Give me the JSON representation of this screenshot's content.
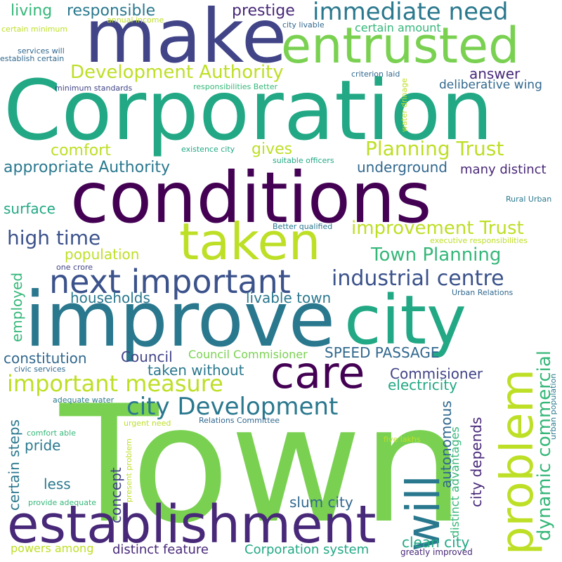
{
  "words": [
    {
      "text": "Town",
      "color": "#7ad151",
      "rot": false
    },
    {
      "text": "Corporation",
      "color": "#22a884",
      "rot": false
    },
    {
      "text": "improve",
      "color": "#2a788e",
      "rot": false
    },
    {
      "text": "conditions",
      "color": "#440154",
      "rot": false
    },
    {
      "text": "make",
      "color": "#414487",
      "rot": false
    },
    {
      "text": "city",
      "color": "#22a884",
      "rot": false
    },
    {
      "text": "establishment",
      "color": "#482878",
      "rot": false
    },
    {
      "text": "taken",
      "color": "#bddf26",
      "rot": false
    },
    {
      "text": "entrusted",
      "color": "#7ad151",
      "rot": false
    },
    {
      "text": "will",
      "color": "#2a788e",
      "rot": true
    },
    {
      "text": "problem",
      "color": "#bddf26",
      "rot": true
    },
    {
      "text": "care",
      "color": "#440154",
      "rot": false
    },
    {
      "text": "next important",
      "color": "#3b528b",
      "rot": false
    },
    {
      "text": "immediate need",
      "color": "#2a788e",
      "rot": false
    },
    {
      "text": "city Development",
      "color": "#2a788e",
      "rot": false
    },
    {
      "text": "important measure",
      "color": "#bddf26",
      "rot": false
    },
    {
      "text": "industrial centre",
      "color": "#3b528b",
      "rot": false
    },
    {
      "text": "Development Authority",
      "color": "#bddf26",
      "rot": false
    },
    {
      "text": "Planning Trust",
      "color": "#bddf26",
      "rot": false
    },
    {
      "text": "improvement Trust",
      "color": "#bddf26",
      "rot": false
    },
    {
      "text": "Town Planning",
      "color": "#35b779",
      "rot": false
    },
    {
      "text": "dynamic commercial",
      "color": "#35b779",
      "rot": true
    },
    {
      "text": "high time",
      "color": "#3b528b",
      "rot": false
    },
    {
      "text": "prestige",
      "color": "#482878",
      "rot": false
    },
    {
      "text": "responsible",
      "color": "#2a788e",
      "rot": false
    },
    {
      "text": "living",
      "color": "#35b779",
      "rot": false
    },
    {
      "text": "answer",
      "color": "#482878",
      "rot": false
    },
    {
      "text": "deliberative wing",
      "color": "#31688e",
      "rot": false
    },
    {
      "text": "appropriate Authority",
      "color": "#2a788e",
      "rot": false
    },
    {
      "text": "gives",
      "color": "#bddf26",
      "rot": false
    },
    {
      "text": "comfort",
      "color": "#bddf26",
      "rot": false
    },
    {
      "text": "underground",
      "color": "#31688e",
      "rot": false
    },
    {
      "text": "many distinct",
      "color": "#482878",
      "rot": false
    },
    {
      "text": "surface",
      "color": "#22a884",
      "rot": false
    },
    {
      "text": "population",
      "color": "#bddf26",
      "rot": false
    },
    {
      "text": "households",
      "color": "#2a788e",
      "rot": false
    },
    {
      "text": "livable town",
      "color": "#2a788e",
      "rot": false
    },
    {
      "text": "employed",
      "color": "#35b779",
      "rot": true
    },
    {
      "text": "constitution",
      "color": "#31688e",
      "rot": false
    },
    {
      "text": "Council",
      "color": "#414487",
      "rot": false
    },
    {
      "text": "SPEED PASSAGE",
      "color": "#31688e",
      "rot": false
    },
    {
      "text": "Council Commisioner",
      "color": "#7ad151",
      "rot": false
    },
    {
      "text": "taken without",
      "color": "#2a788e",
      "rot": false
    },
    {
      "text": "Commisioner",
      "color": "#414487",
      "rot": false
    },
    {
      "text": "electricity",
      "color": "#22a884",
      "rot": false
    },
    {
      "text": "certain steps",
      "color": "#2a788e",
      "rot": true
    },
    {
      "text": "pride",
      "color": "#2a788e",
      "rot": false
    },
    {
      "text": "less",
      "color": "#2a788e",
      "rot": false
    },
    {
      "text": "concept",
      "color": "#414487",
      "rot": true
    },
    {
      "text": "autonomous",
      "color": "#31688e",
      "rot": true
    },
    {
      "text": "city depends",
      "color": "#482878",
      "rot": true
    },
    {
      "text": "distinct advantages",
      "color": "#35b779",
      "rot": true
    },
    {
      "text": "slum city",
      "color": "#31688e",
      "rot": false
    },
    {
      "text": "clean city",
      "color": "#22a884",
      "rot": false
    },
    {
      "text": "distinct feature",
      "color": "#482878",
      "rot": false
    },
    {
      "text": "Corporation system",
      "color": "#22a884",
      "rot": false
    },
    {
      "text": "powers among",
      "color": "#bddf26",
      "rot": false
    },
    {
      "text": "greatly improved",
      "color": "#482878",
      "rot": false
    },
    {
      "text": "certain amount",
      "color": "#35b779",
      "rot": false
    },
    {
      "text": "certain minimum",
      "color": "#bddf26",
      "rot": false
    },
    {
      "text": "annual income",
      "color": "#bddf26",
      "rot": false
    },
    {
      "text": "services will",
      "color": "#31688e",
      "rot": false
    },
    {
      "text": "establish certain",
      "color": "#31688e",
      "rot": false
    },
    {
      "text": "minimum standards",
      "color": "#414487",
      "rot": false
    },
    {
      "text": "responsibilities Better",
      "color": "#35b779",
      "rot": false
    },
    {
      "text": "city livable",
      "color": "#31688e",
      "rot": false
    },
    {
      "text": "criterion laid",
      "color": "#31688e",
      "rot": false
    },
    {
      "text": "water drinage",
      "color": "#bddf26",
      "rot": true
    },
    {
      "text": "existence city",
      "color": "#22a884",
      "rot": false
    },
    {
      "text": "suitable officers",
      "color": "#22a884",
      "rot": false
    },
    {
      "text": "Rural Urban",
      "color": "#2a788e",
      "rot": false
    },
    {
      "text": "Better qualified",
      "color": "#2a788e",
      "rot": false
    },
    {
      "text": "executive responsibilities",
      "color": "#bddf26",
      "rot": false
    },
    {
      "text": "one crore",
      "color": "#414487",
      "rot": false
    },
    {
      "text": "Urban Relations",
      "color": "#31688e",
      "rot": false
    },
    {
      "text": "civic services",
      "color": "#31688e",
      "rot": false
    },
    {
      "text": "adequate water",
      "color": "#2a788e",
      "rot": false
    },
    {
      "text": "urban population",
      "color": "#2a788e",
      "rot": true
    },
    {
      "text": "Relations Committee",
      "color": "#31688e",
      "rot": false
    },
    {
      "text": "urgent need",
      "color": "#bddf26",
      "rot": false
    },
    {
      "text": "comfort able",
      "color": "#35b779",
      "rot": false
    },
    {
      "text": "five lakhs",
      "color": "#bddf26",
      "rot": false
    },
    {
      "text": "present problem",
      "color": "#bddf26",
      "rot": true
    },
    {
      "text": "provide adequate",
      "color": "#35b779",
      "rot": false
    }
  ]
}
